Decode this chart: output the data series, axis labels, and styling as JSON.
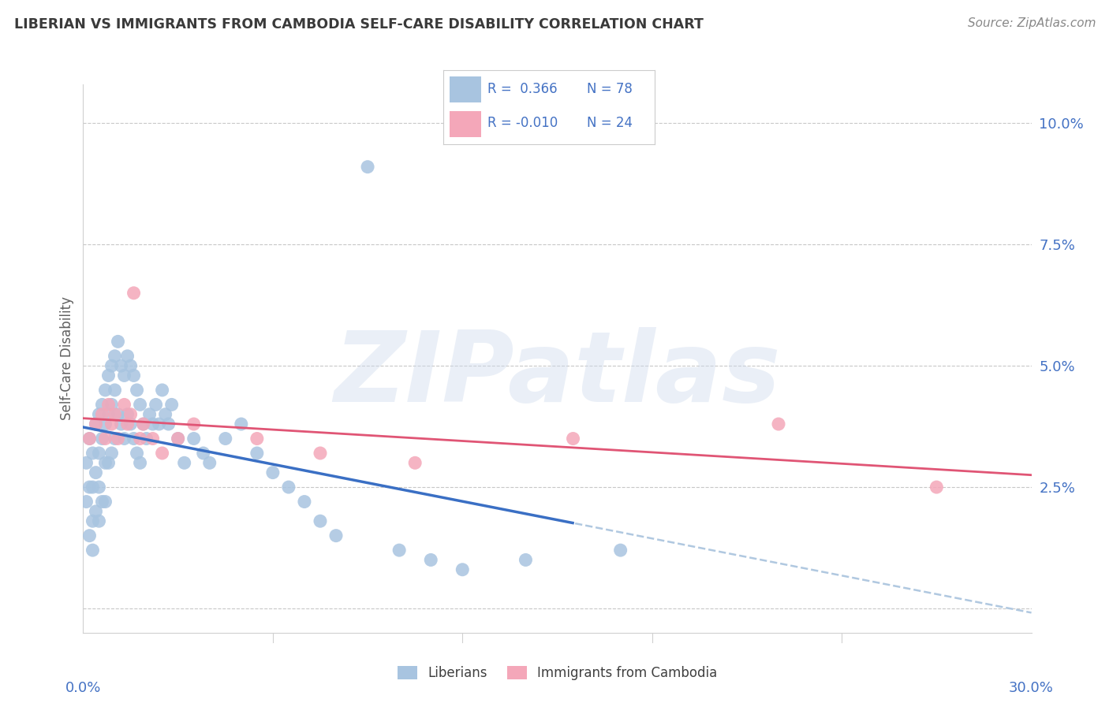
{
  "title": "LIBERIAN VS IMMIGRANTS FROM CAMBODIA SELF-CARE DISABILITY CORRELATION CHART",
  "source": "Source: ZipAtlas.com",
  "ylabel": "Self-Care Disability",
  "watermark": "ZIPatlas",
  "xlim": [
    0.0,
    0.3
  ],
  "ylim": [
    -0.005,
    0.108
  ],
  "yticks": [
    0.0,
    0.025,
    0.05,
    0.075,
    0.1
  ],
  "ytick_labels": [
    "",
    "2.5%",
    "5.0%",
    "7.5%",
    "10.0%"
  ],
  "liberian_color": "#a8c4e0",
  "liberian_line_color": "#3a6fc4",
  "liberian_dashed_color": "#b0c8e0",
  "cambodia_color": "#f4a7b9",
  "cambodia_line_color": "#e05575",
  "background_color": "#ffffff",
  "grid_color": "#c8c8c8",
  "title_color": "#3a3a3a",
  "axis_label_color": "#4472c4",
  "source_color": "#888888",
  "liberian_x": [
    0.001,
    0.001,
    0.002,
    0.002,
    0.002,
    0.003,
    0.003,
    0.003,
    0.003,
    0.004,
    0.004,
    0.004,
    0.005,
    0.005,
    0.005,
    0.005,
    0.006,
    0.006,
    0.006,
    0.007,
    0.007,
    0.007,
    0.007,
    0.008,
    0.008,
    0.008,
    0.009,
    0.009,
    0.009,
    0.01,
    0.01,
    0.01,
    0.011,
    0.011,
    0.012,
    0.012,
    0.013,
    0.013,
    0.014,
    0.014,
    0.015,
    0.015,
    0.016,
    0.016,
    0.017,
    0.017,
    0.018,
    0.018,
    0.019,
    0.02,
    0.021,
    0.022,
    0.023,
    0.024,
    0.025,
    0.026,
    0.027,
    0.028,
    0.03,
    0.032,
    0.035,
    0.038,
    0.04,
    0.045,
    0.05,
    0.055,
    0.06,
    0.065,
    0.07,
    0.075,
    0.08,
    0.09,
    0.1,
    0.11,
    0.12,
    0.14,
    0.17
  ],
  "liberian_y": [
    0.03,
    0.022,
    0.035,
    0.025,
    0.015,
    0.032,
    0.025,
    0.018,
    0.012,
    0.038,
    0.028,
    0.02,
    0.04,
    0.032,
    0.025,
    0.018,
    0.042,
    0.035,
    0.022,
    0.045,
    0.038,
    0.03,
    0.022,
    0.048,
    0.04,
    0.03,
    0.05,
    0.042,
    0.032,
    0.052,
    0.045,
    0.035,
    0.055,
    0.04,
    0.05,
    0.038,
    0.048,
    0.035,
    0.052,
    0.04,
    0.05,
    0.038,
    0.048,
    0.035,
    0.045,
    0.032,
    0.042,
    0.03,
    0.038,
    0.035,
    0.04,
    0.038,
    0.042,
    0.038,
    0.045,
    0.04,
    0.038,
    0.042,
    0.035,
    0.03,
    0.035,
    0.032,
    0.03,
    0.035,
    0.038,
    0.032,
    0.028,
    0.025,
    0.022,
    0.018,
    0.015,
    0.091,
    0.012,
    0.01,
    0.008,
    0.01,
    0.012
  ],
  "cambodia_x": [
    0.002,
    0.004,
    0.006,
    0.007,
    0.008,
    0.009,
    0.01,
    0.011,
    0.013,
    0.014,
    0.015,
    0.016,
    0.018,
    0.019,
    0.022,
    0.025,
    0.03,
    0.035,
    0.055,
    0.075,
    0.105,
    0.155,
    0.22,
    0.27
  ],
  "cambodia_y": [
    0.035,
    0.038,
    0.04,
    0.035,
    0.042,
    0.038,
    0.04,
    0.035,
    0.042,
    0.038,
    0.04,
    0.065,
    0.035,
    0.038,
    0.035,
    0.032,
    0.035,
    0.038,
    0.035,
    0.032,
    0.03,
    0.035,
    0.038,
    0.025
  ]
}
